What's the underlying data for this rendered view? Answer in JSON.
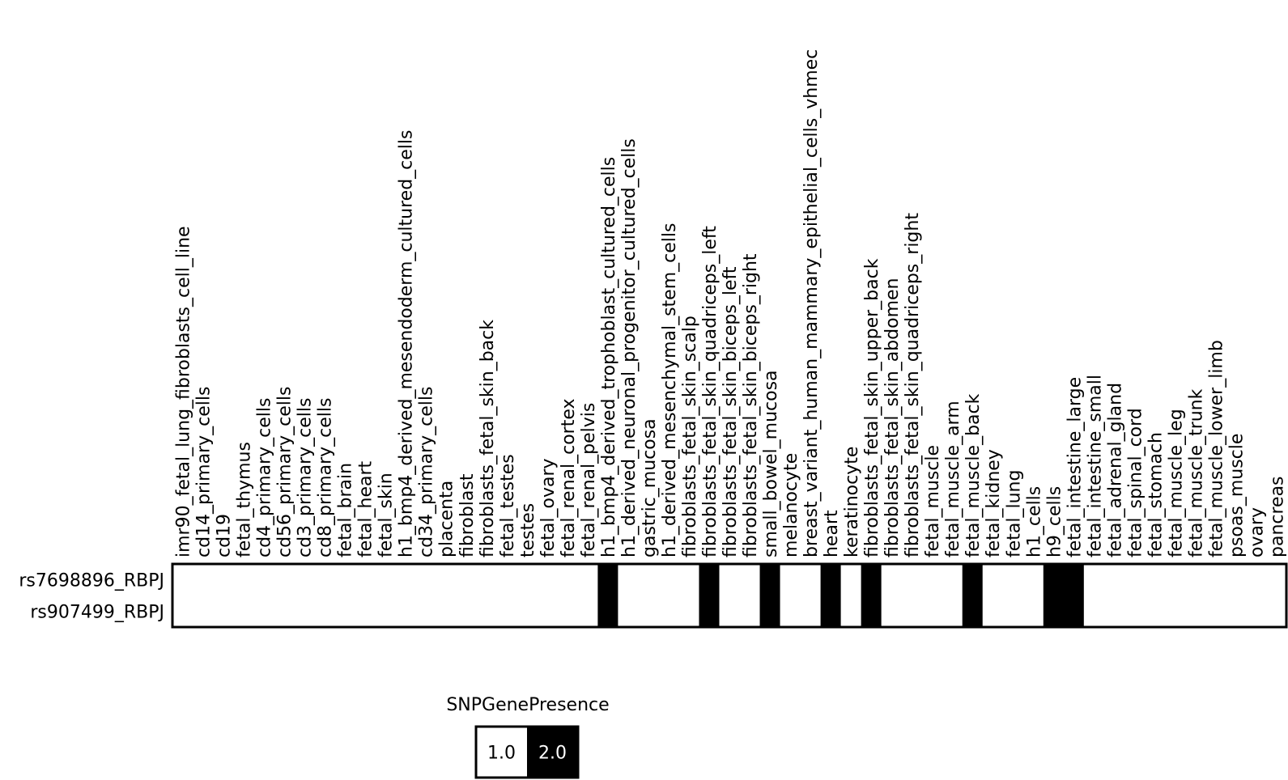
{
  "chart_data": {
    "type": "heatmap",
    "columns": [
      "imr90_fetal_lung_fibroblasts_cell_line",
      "cd14_primary_cells",
      "cd19",
      "fetal_thymus",
      "cd4_primary_cells",
      "cd56_primary_cells",
      "cd3_primary_cells",
      "cd8_primary_cells",
      "fetal_brain",
      "fetal_heart",
      "fetal_skin",
      "h1_bmp4_derived_mesendoderm_cultured_cells",
      "cd34_primary_cells",
      "placenta",
      "fibroblast",
      "fibroblasts_fetal_skin_back",
      "fetal_testes",
      "testes",
      "fetal_ovary",
      "fetal_renal_cortex",
      "fetal_renal_pelvis",
      "h1_bmp4_derived_trophoblast_cultured_cells",
      "h1_derived_neuronal_progenitor_cultured_cells",
      "gastric_mucosa",
      "h1_derived_mesenchymal_stem_cells",
      "fibroblasts_fetal_skin_scalp",
      "fibroblasts_fetal_skin_quadriceps_left",
      "fibroblasts_fetal_skin_biceps_left",
      "fibroblasts_fetal_skin_biceps_right",
      "small_bowel_mucosa",
      "melanocyte",
      "breast_variant_human_mammary_epithelial_cells_vhmec",
      "heart",
      "keratinocyte",
      "fibroblasts_fetal_skin_upper_back",
      "fibroblasts_fetal_skin_abdomen",
      "fibroblasts_fetal_skin_quadriceps_right",
      "fetal_muscle",
      "fetal_muscle_arm",
      "fetal_muscle_back",
      "fetal_kidney",
      "fetal_lung",
      "h1_cells",
      "h9_cells",
      "fetal_intestine_large",
      "fetal_intestine_small",
      "fetal_adrenal_gland",
      "fetal_spinal_cord",
      "fetal_stomach",
      "fetal_muscle_leg",
      "fetal_muscle_trunk",
      "fetal_muscle_lower_limb",
      "psoas_muscle",
      "ovary",
      "pancreas"
    ],
    "rows": [
      "rs7698896_RBPJ",
      "rs907499_RBPJ"
    ],
    "values": [
      [
        1,
        1,
        1,
        1,
        1,
        1,
        1,
        1,
        1,
        1,
        1,
        1,
        1,
        1,
        1,
        1,
        1,
        1,
        1,
        1,
        1,
        2,
        1,
        1,
        1,
        1,
        2,
        1,
        1,
        2,
        1,
        1,
        2,
        1,
        2,
        1,
        1,
        1,
        1,
        2,
        1,
        1,
        1,
        2,
        2,
        1,
        1,
        1,
        1,
        1,
        1,
        1,
        1,
        1,
        1
      ],
      [
        1,
        1,
        1,
        1,
        1,
        1,
        1,
        1,
        1,
        1,
        1,
        1,
        1,
        1,
        1,
        1,
        1,
        1,
        1,
        1,
        1,
        2,
        1,
        1,
        1,
        1,
        2,
        1,
        1,
        2,
        1,
        1,
        2,
        1,
        2,
        1,
        1,
        1,
        1,
        2,
        1,
        1,
        1,
        2,
        2,
        1,
        1,
        1,
        1,
        1,
        1,
        1,
        1,
        1,
        1
      ]
    ],
    "legend": {
      "title": "SNPGenePresence",
      "entries": [
        {
          "label": "1.0",
          "value": 1,
          "color": "#ffffff"
        },
        {
          "label": "2.0",
          "value": 2,
          "color": "#000000"
        }
      ]
    },
    "colors": {
      "1": "#ffffff",
      "2": "#000000"
    }
  }
}
